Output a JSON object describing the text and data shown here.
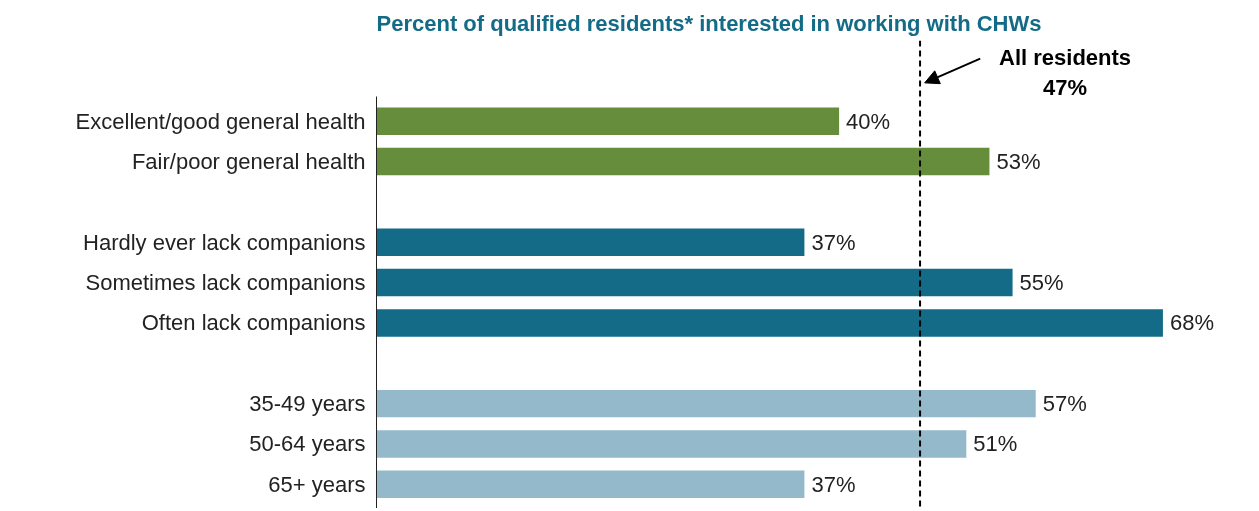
{
  "chart_data": {
    "type": "bar",
    "orientation": "horizontal",
    "title": "Percent of qualified residents* interested in working with CHWs",
    "categories": [
      "Excellent/good general health",
      "Fair/poor general health",
      null,
      "Hardly ever lack companions",
      "Sometimes lack companions",
      "Often lack companions",
      null,
      "35-49 years",
      "50-64 years",
      "65+ years"
    ],
    "values": [
      40,
      53,
      null,
      37,
      55,
      68,
      null,
      57,
      51,
      37
    ],
    "colors": [
      "#668d3c",
      "#668d3c",
      null,
      "#136b87",
      "#136b87",
      "#136b87",
      null,
      "#93b9cb",
      "#93b9cb",
      "#93b9cb"
    ],
    "value_labels": [
      "40%",
      "53%",
      null,
      "37%",
      "55%",
      "68%",
      null,
      "57%",
      "51%",
      "37%"
    ],
    "ref_lines": [
      {
        "axis": "x",
        "value": 47,
        "label": "All residents\n47%",
        "color": "#000000",
        "line_style": "dashed"
      }
    ],
    "grid": false
  }
}
